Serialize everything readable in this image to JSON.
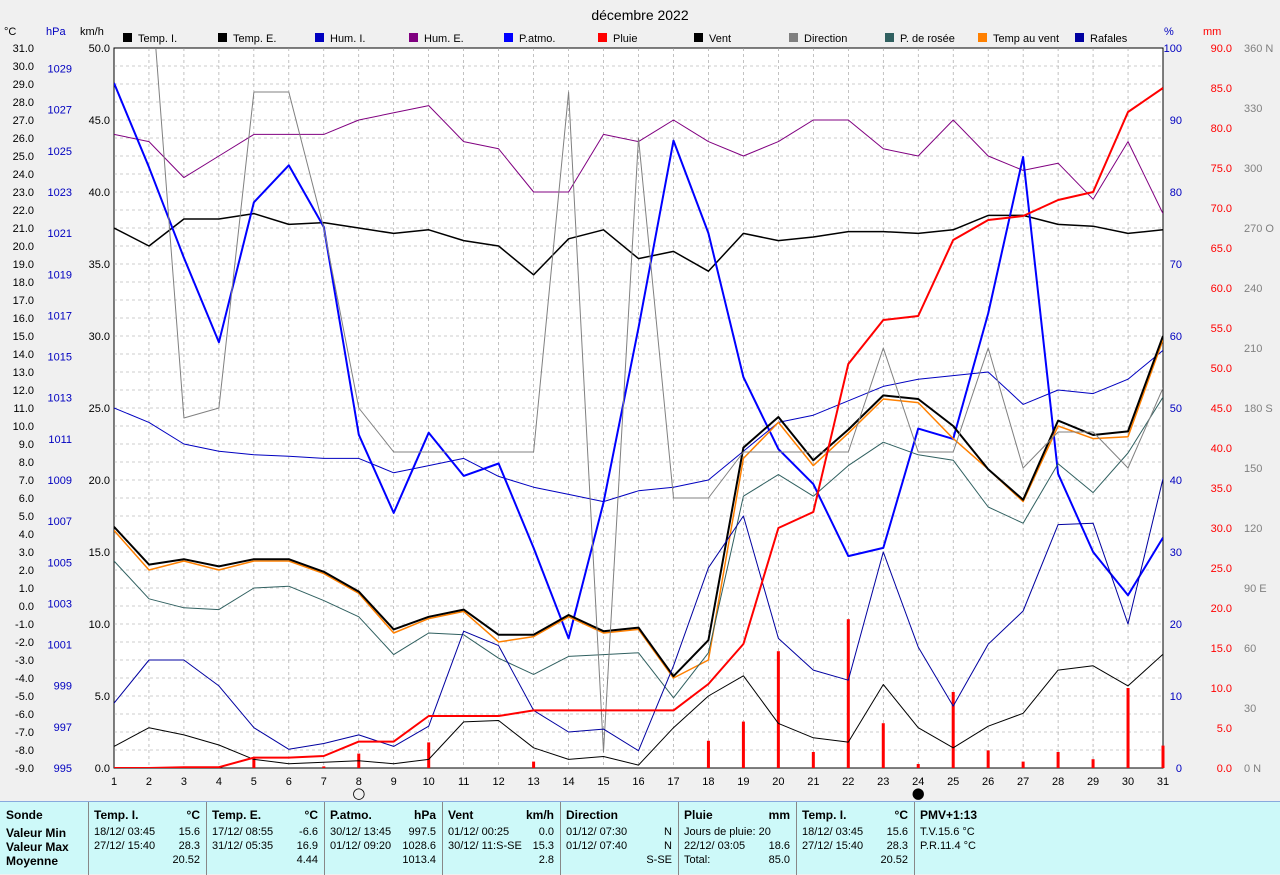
{
  "chart_data": {
    "type": "line",
    "title": "décembre 2022",
    "days": [
      1,
      2,
      3,
      4,
      5,
      6,
      7,
      8,
      9,
      10,
      11,
      12,
      13,
      14,
      15,
      16,
      17,
      18,
      19,
      20,
      21,
      22,
      23,
      24,
      25,
      26,
      27,
      28,
      29,
      30,
      31
    ],
    "axes": {
      "temp": {
        "unit": "°C",
        "range": [
          -9,
          31
        ],
        "ticks": [
          "31.0",
          "30.0",
          "29.0",
          "28.0",
          "27.0",
          "26.0",
          "25.0",
          "24.0",
          "23.0",
          "22.0",
          "21.0",
          "20.0",
          "19.0",
          "18.0",
          "17.0",
          "16.0",
          "15.0",
          "14.0",
          "13.0",
          "12.0",
          "11.0",
          "10.0",
          "9.0",
          "8.0",
          "7.0",
          "6.0",
          "5.0",
          "4.0",
          "3.0",
          "2.0",
          "1.0",
          "0.0",
          "-1.0",
          "-2.0",
          "-3.0",
          "-4.0",
          "-5.0",
          "-6.0",
          "-7.0",
          "-8.0",
          "-9.0"
        ]
      },
      "press": {
        "unit": "hPa",
        "range": [
          995,
          1030
        ],
        "ticks": [
          "1029",
          "1027",
          "1025",
          "1023",
          "1021",
          "1019",
          "1017",
          "1015",
          "1013",
          "1011",
          "1009",
          "1007",
          "1005",
          "1003",
          "1001",
          "999",
          "997",
          "995"
        ]
      },
      "wind": {
        "unit": "km/h",
        "range": [
          0,
          50
        ],
        "ticks": [
          "50.0",
          "45.0",
          "40.0",
          "35.0",
          "30.0",
          "25.0",
          "20.0",
          "15.0",
          "10.0",
          "5.0",
          "0.0"
        ]
      },
      "hum": {
        "unit": "%",
        "range": [
          0,
          100
        ],
        "ticks": [
          "100",
          "90",
          "80",
          "70",
          "60",
          "50",
          "40",
          "30",
          "20",
          "10",
          "0"
        ]
      },
      "rain": {
        "unit": "mm",
        "range": [
          0,
          90
        ],
        "ticks": [
          "90.0",
          "85.0",
          "80.0",
          "75.0",
          "70.0",
          "65.0",
          "60.0",
          "55.0",
          "50.0",
          "45.0",
          "40.0",
          "35.0",
          "30.0",
          "25.0",
          "20.0",
          "15.0",
          "10.0",
          "5.0",
          "0.0"
        ]
      },
      "dir": {
        "range": [
          0,
          360
        ],
        "ticks": [
          "360 N",
          "330",
          "300",
          "270 O",
          "240",
          "210",
          "180 S",
          "150",
          "120",
          "90 E",
          "60",
          "30",
          "0 N"
        ]
      }
    },
    "legend": [
      {
        "name": "Temp. I.",
        "color": "#000000"
      },
      {
        "name": "Temp. E.",
        "color": "#000000"
      },
      {
        "name": "Hum. I.",
        "color": "#0000c0"
      },
      {
        "name": "Hum. E.",
        "color": "#800080"
      },
      {
        "name": "P.atmo.",
        "color": "#0000ff"
      },
      {
        "name": "Pluie",
        "color": "#ff0000"
      },
      {
        "name": "Vent",
        "color": "#000000"
      },
      {
        "name": "Direction",
        "color": "#808080"
      },
      {
        "name": "P. de rosée",
        "color": "#306060"
      },
      {
        "name": "Temp au vent",
        "color": "#ff8000"
      },
      {
        "name": "Rafales",
        "color": "#0000a0"
      }
    ],
    "series": [
      {
        "name": "Temp. I.",
        "axis": "temp",
        "color": "#000000",
        "width": 1.5,
        "values": [
          21.0,
          20.0,
          21.5,
          21.5,
          21.8,
          21.2,
          21.3,
          21.0,
          20.7,
          20.9,
          20.3,
          20.0,
          18.4,
          20.4,
          20.9,
          19.3,
          19.7,
          18.6,
          20.7,
          20.3,
          20.5,
          20.8,
          20.8,
          20.7,
          20.9,
          21.7,
          21.7,
          21.2,
          21.1,
          20.7,
          20.9
        ]
      },
      {
        "name": "Hum. E.",
        "axis": "hum",
        "color": "#800080",
        "width": 1,
        "values": [
          88,
          87,
          82,
          85,
          88,
          88,
          88,
          90,
          91,
          92,
          87,
          86,
          80,
          80,
          88,
          87,
          90,
          87,
          85,
          87,
          90,
          90,
          86,
          85,
          90,
          85,
          83,
          84,
          79,
          87,
          77
        ]
      },
      {
        "name": "Hum. I.",
        "axis": "hum",
        "color": "#0000c0",
        "width": 1,
        "values": [
          50,
          48,
          45,
          44,
          43.5,
          43.3,
          43,
          43,
          41,
          42,
          43,
          40.5,
          39,
          38,
          37,
          38.5,
          39,
          40,
          44,
          48,
          49,
          51,
          53,
          54,
          54.5,
          55,
          50.5,
          52.5,
          52,
          54,
          58
        ]
      },
      {
        "name": "P.atmo.",
        "axis": "press",
        "color": "#0000ff",
        "width": 2,
        "values": [
          1028.3,
          1024.2,
          1019.8,
          1015.7,
          1022.5,
          1024.3,
          1021.3,
          1011.2,
          1007.4,
          1011.3,
          1009.2,
          1009.8,
          1005.7,
          1001.3,
          1007.9,
          1016.4,
          1025.5,
          1021.0,
          1014.0,
          1010.5,
          1008.8,
          1005.3,
          1005.7,
          1011.5,
          1011.0,
          1017.1,
          1024.7,
          1009.3,
          1005.5,
          1003.4,
          1006.2
        ]
      },
      {
        "name": "Temp au vent",
        "axis": "temp",
        "color": "#ff8000",
        "width": 1.5,
        "values": [
          4.2,
          2.0,
          2.5,
          2.0,
          2.5,
          2.5,
          1.8,
          0.7,
          -1.5,
          -0.7,
          -0.3,
          -2.0,
          -1.7,
          -0.6,
          -1.5,
          -1.3,
          -4.0,
          -3.0,
          8.2,
          10.2,
          7.8,
          9.6,
          11.5,
          11.3,
          9.3,
          7.6,
          5.8,
          10.0,
          9.3,
          9.4,
          14.8
        ]
      },
      {
        "name": "Temp. E.",
        "axis": "temp",
        "color": "#000000",
        "width": 2,
        "values": [
          4.4,
          2.3,
          2.6,
          2.2,
          2.6,
          2.6,
          1.9,
          0.8,
          -1.3,
          -0.6,
          -0.2,
          -1.6,
          -1.6,
          -0.5,
          -1.4,
          -1.2,
          -3.9,
          -1.9,
          8.8,
          10.5,
          8.1,
          9.8,
          11.7,
          11.5,
          10.0,
          7.6,
          5.9,
          10.3,
          9.5,
          9.7,
          15.0
        ]
      },
      {
        "name": "P. de rosée",
        "axis": "temp",
        "color": "#306060",
        "width": 1,
        "values": [
          2.5,
          0.4,
          -0.1,
          -0.2,
          1.0,
          1.1,
          0.3,
          -0.6,
          -2.7,
          -1.5,
          -1.6,
          -2.9,
          -3.8,
          -2.8,
          -2.7,
          -2.6,
          -5.1,
          -2.6,
          6.1,
          7.3,
          6.1,
          7.8,
          9.1,
          8.4,
          8.1,
          5.5,
          4.6,
          7.9,
          6.3,
          8.5,
          11.6
        ]
      },
      {
        "name": "Direction",
        "axis": "dir",
        "color": "#808080",
        "width": 1,
        "values": [
          405,
          405,
          175,
          180,
          338,
          338,
          270,
          180,
          158,
          158,
          158,
          158,
          158,
          338,
          8,
          315,
          135,
          135,
          158,
          158,
          158,
          158,
          210,
          158,
          158,
          210,
          150,
          168,
          168,
          150,
          190
        ]
      },
      {
        "name": "Vent",
        "axis": "wind",
        "color": "#000000",
        "width": 1,
        "values": [
          1.5,
          2.8,
          2.3,
          1.6,
          0.6,
          0.3,
          0.4,
          0.5,
          0.3,
          0.6,
          3.2,
          3.3,
          1.4,
          0.6,
          0.8,
          0.2,
          2.8,
          5.0,
          6.4,
          3.1,
          2.1,
          1.8,
          5.8,
          2.8,
          1.4,
          2.9,
          3.8,
          6.8,
          7.1,
          5.7,
          7.9
        ]
      },
      {
        "name": "Rafales",
        "axis": "wind",
        "color": "#0000a0",
        "width": 1,
        "values": [
          4.5,
          7.5,
          7.5,
          5.7,
          2.8,
          1.3,
          1.7,
          2.3,
          1.5,
          2.9,
          9.5,
          8.5,
          4.0,
          2.5,
          2.7,
          1.2,
          7.1,
          13.9,
          17.5,
          9.0,
          6.8,
          6.1,
          15.0,
          8.4,
          4.3,
          8.6,
          10.9,
          16.9,
          17.0,
          10.0,
          20.1
        ]
      },
      {
        "name": "Pluie",
        "axis": "rain",
        "color": "#ff0000",
        "width": 2,
        "values": [
          0,
          0,
          0.1,
          0.1,
          1.3,
          1.3,
          1.5,
          3.3,
          3.3,
          6.5,
          6.5,
          6.5,
          7.2,
          7.2,
          7.2,
          7.2,
          7.2,
          10.5,
          15.5,
          30.0,
          32.0,
          50.5,
          56.0,
          56.5,
          66.0,
          68.5,
          69.0,
          71.0,
          72.0,
          82.0,
          85.0
        ]
      }
    ],
    "rain_daily": [
      0,
      0,
      0.1,
      0,
      1.2,
      0,
      0.2,
      1.8,
      0,
      3.2,
      0,
      0,
      0.8,
      0,
      0,
      0,
      0,
      3.4,
      5.8,
      14.6,
      2.0,
      18.6,
      5.6,
      0.5,
      9.5,
      2.2,
      0.8,
      2.0,
      1.1,
      10.0,
      2.8
    ],
    "moon_phases": [
      {
        "day": 8,
        "symbol": "○"
      },
      {
        "day": 24,
        "symbol": "●"
      }
    ]
  },
  "stats": {
    "row_labels": [
      "Sonde",
      "Valeur Min",
      "Valeur Max",
      "Moyenne"
    ],
    "columns": [
      {
        "title": "Temp. I.",
        "unit": "°C",
        "rows": [
          [
            "18/12/  03:45",
            "15.6"
          ],
          [
            "27/12/  15:40",
            "28.3"
          ],
          [
            "",
            "20.52"
          ]
        ]
      },
      {
        "title": "Temp. E.",
        "unit": "°C",
        "rows": [
          [
            "17/12/  08:55",
            "-6.6"
          ],
          [
            "31/12/  05:35",
            "16.9"
          ],
          [
            "",
            "4.44"
          ]
        ]
      },
      {
        "title": "P.atmo.",
        "unit": "hPa",
        "rows": [
          [
            "30/12/  13:45",
            "997.5"
          ],
          [
            "01/12/  09:20",
            "1028.6"
          ],
          [
            "",
            "1013.4"
          ]
        ]
      },
      {
        "title": "Vent",
        "unit": "km/h",
        "rows": [
          [
            "01/12/  00:25",
            "0.0"
          ],
          [
            "30/12/  11:S-SE",
            "15.3"
          ],
          [
            "",
            "2.8"
          ]
        ]
      },
      {
        "title": "Direction",
        "unit": "",
        "rows": [
          [
            "01/12/  07:30",
            "N"
          ],
          [
            "01/12/  07:40",
            "N"
          ],
          [
            "",
            "S-SE"
          ]
        ]
      },
      {
        "title": "Pluie",
        "unit": "mm",
        "rows": [
          [
            "Jours de pluie: 20",
            ""
          ],
          [
            "22/12/  03:05",
            "18.6"
          ],
          [
            "Total:",
            "85.0"
          ]
        ]
      },
      {
        "title": "Temp. I.",
        "unit": "°C",
        "rows": [
          [
            "18/12/  03:45",
            "15.6"
          ],
          [
            "27/12/  15:40",
            "28.3"
          ],
          [
            "",
            "20.52"
          ]
        ]
      }
    ],
    "pmv": {
      "title": "PMV+1:13",
      "line1": "T.V.15.6 °C",
      "line2": "P.R.11.4 °C"
    }
  },
  "colors": {
    "background": "#f0f0f0",
    "plot": "#ffffff",
    "stats_bg": "#cdf9f9"
  }
}
